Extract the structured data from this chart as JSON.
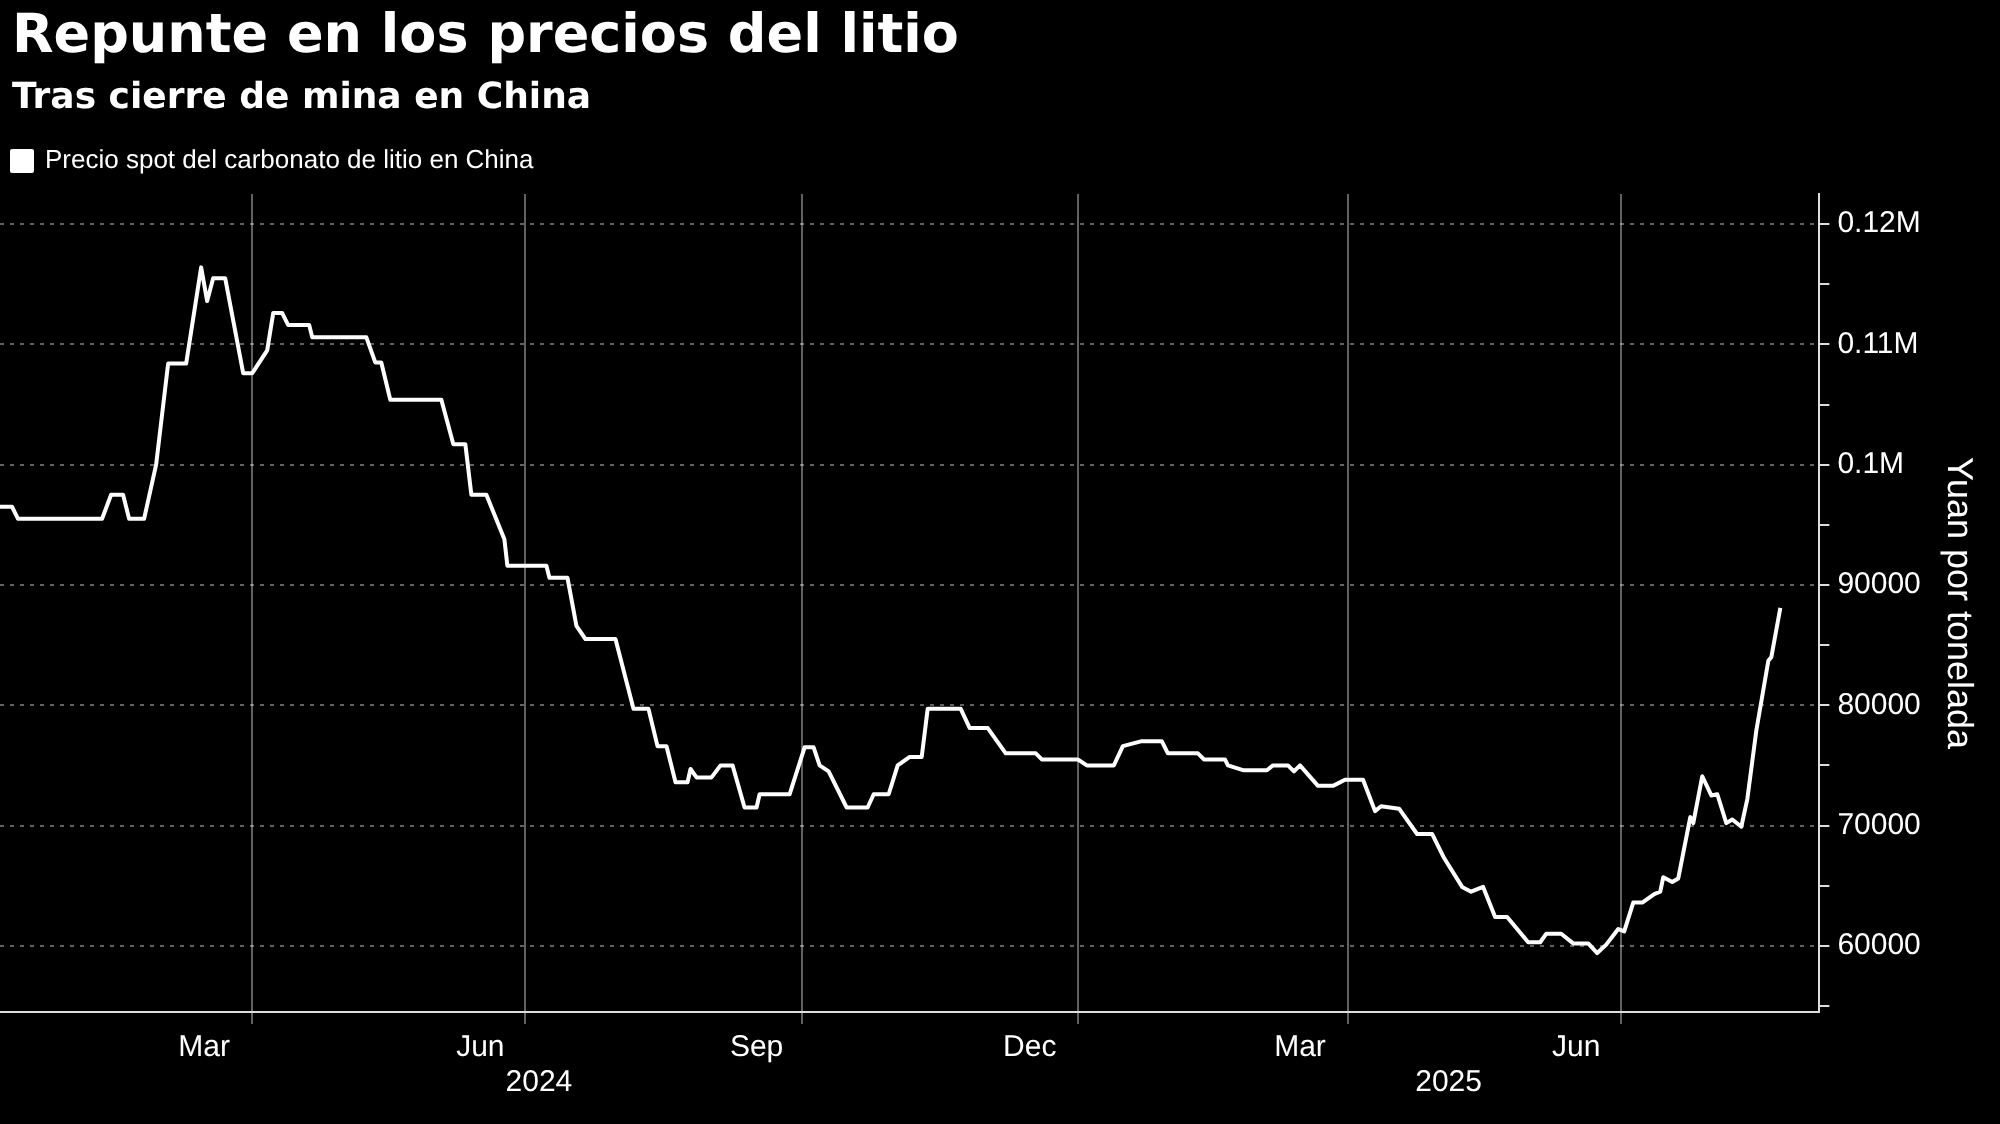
{
  "chart_data": {
    "type": "line",
    "title": "Repunte en los precios del litio",
    "subtitle": "Tras cierre de mina en China",
    "ylabel": "Yuan por tonelada",
    "legend": "top left",
    "grid": true,
    "marker": "none",
    "line_style": "solid",
    "xlim": [
      "2024-01-08",
      "2025-09-05"
    ],
    "xticks": [
      {
        "value": "2024-03-16",
        "label": "Mar"
      },
      {
        "value": "2024-04-01",
        "label": null
      },
      {
        "value": "2024-06-16",
        "label": "Jun"
      },
      {
        "value": "2024-07-01",
        "label": null
      },
      {
        "value": "2024-09-16",
        "label": "Sep"
      },
      {
        "value": "2024-10-01",
        "label": null
      },
      {
        "value": "2024-12-16",
        "label": "Dec"
      },
      {
        "value": "2025-01-01",
        "label": null
      },
      {
        "value": "2025-03-16",
        "label": "Mar"
      },
      {
        "value": "2025-04-01",
        "label": null
      },
      {
        "value": "2025-06-16",
        "label": "Jun"
      },
      {
        "value": "2025-07-01",
        "label": null
      }
    ],
    "ylim": [
      54500,
      122500
    ],
    "yticks": [
      {
        "value": 55000,
        "label": null
      },
      60000,
      {
        "value": 65000,
        "label": null
      },
      70000,
      {
        "value": 75000,
        "label": null
      },
      80000,
      {
        "value": 85000,
        "label": null
      },
      90000,
      {
        "value": 95000,
        "label": null
      },
      {
        "value": 100000,
        "label": "0.1M"
      },
      {
        "value": 105000,
        "label": null
      },
      {
        "value": 110000,
        "label": "0.11M"
      },
      {
        "value": 115000,
        "label": null
      },
      {
        "value": 120000,
        "label": "0.12M"
      }
    ],
    "annotations": [
      "2024",
      "2025"
    ],
    "series": [
      {
        "name": "Precio spot del carbonato de litio en China",
        "color": "#ffffff",
        "x": [
          "2024-01-08",
          "2024-01-12",
          "2024-01-14",
          "2024-02-11",
          "2024-02-14",
          "2024-02-18",
          "2024-02-20",
          "2024-02-25",
          "2024-02-29",
          "2024-03-04",
          "2024-03-10",
          "2024-03-15",
          "2024-03-17",
          "2024-03-19",
          "2024-03-23",
          "2024-03-29",
          "2024-04-01",
          "2024-04-06",
          "2024-04-08",
          "2024-04-11",
          "2024-04-13",
          "2024-04-20",
          "2024-04-21",
          "2024-05-09",
          "2024-05-12",
          "2024-05-14",
          "2024-05-17",
          "2024-06-03",
          "2024-06-07",
          "2024-06-11",
          "2024-06-13",
          "2024-06-18",
          "2024-06-24",
          "2024-06-25",
          "2024-07-08",
          "2024-07-09",
          "2024-07-15",
          "2024-07-18",
          "2024-07-21",
          "2024-07-31",
          "2024-08-06",
          "2024-08-11",
          "2024-08-14",
          "2024-08-17",
          "2024-08-20",
          "2024-08-24",
          "2024-08-25",
          "2024-08-27",
          "2024-09-01",
          "2024-09-04",
          "2024-09-08",
          "2024-09-12",
          "2024-09-16",
          "2024-09-17",
          "2024-09-27",
          "2024-10-02",
          "2024-10-05",
          "2024-10-07",
          "2024-10-10",
          "2024-10-16",
          "2024-10-23",
          "2024-10-25",
          "2024-10-30",
          "2024-11-02",
          "2024-11-06",
          "2024-11-10",
          "2024-11-12",
          "2024-11-23",
          "2024-11-26",
          "2024-12-02",
          "2024-12-08",
          "2024-12-18",
          "2024-12-20",
          "2025-01-01",
          "2025-01-04",
          "2025-01-13",
          "2025-01-16",
          "2025-01-22",
          "2025-01-29",
          "2025-01-31",
          "2025-02-10",
          "2025-02-12",
          "2025-02-19",
          "2025-02-20",
          "2025-02-25",
          "2025-03-05",
          "2025-03-07",
          "2025-03-12",
          "2025-03-14",
          "2025-03-16",
          "2025-03-22",
          "2025-03-27",
          "2025-03-31",
          "2025-04-06",
          "2025-04-10",
          "2025-04-12",
          "2025-04-18",
          "2025-04-24",
          "2025-04-29",
          "2025-05-03",
          "2025-05-09",
          "2025-05-12",
          "2025-05-16",
          "2025-05-20",
          "2025-05-24",
          "2025-05-31",
          "2025-06-04",
          "2025-06-06",
          "2025-06-11",
          "2025-06-15",
          "2025-06-20",
          "2025-06-23",
          "2025-06-26",
          "2025-06-30",
          "2025-07-02",
          "2025-07-05",
          "2025-07-08",
          "2025-07-12",
          "2025-07-14",
          "2025-07-15",
          "2025-07-18",
          "2025-07-20",
          "2025-07-24",
          "2025-07-25",
          "2025-07-28",
          "2025-07-31",
          "2025-08-02",
          "2025-08-05",
          "2025-08-07",
          "2025-08-10",
          "2025-08-12",
          "2025-08-15",
          "2025-08-19",
          "2025-08-20",
          "2025-08-23"
        ],
        "values": [
          96500,
          96500,
          95500,
          95500,
          97500,
          97500,
          95500,
          95500,
          100000,
          108400,
          108400,
          116400,
          113600,
          115500,
          115500,
          107600,
          107600,
          109500,
          112600,
          112600,
          111600,
          111600,
          110600,
          110600,
          108500,
          108500,
          105400,
          105400,
          101700,
          101700,
          97500,
          97500,
          93800,
          91600,
          91600,
          90600,
          90600,
          86600,
          85500,
          85500,
          79700,
          79700,
          76600,
          76600,
          73600,
          73600,
          74700,
          74000,
          74000,
          75000,
          75000,
          71500,
          71500,
          72600,
          72600,
          76500,
          76500,
          75000,
          74500,
          71500,
          71500,
          72600,
          72600,
          75000,
          75700,
          75700,
          79700,
          79700,
          78100,
          78100,
          76000,
          76000,
          75500,
          75500,
          75000,
          75000,
          76600,
          77000,
          77000,
          76000,
          76000,
          75500,
          75500,
          75000,
          74600,
          74600,
          75000,
          75000,
          74500,
          75000,
          73300,
          73300,
          73800,
          73800,
          71200,
          71600,
          71400,
          69300,
          69300,
          67300,
          64900,
          64500,
          64900,
          62400,
          62400,
          60300,
          60300,
          61000,
          61000,
          60200,
          60200,
          59400,
          60100,
          61400,
          61200,
          63600,
          63600,
          64300,
          64500,
          65700,
          65300,
          65600,
          70700,
          70200,
          74100,
          72500,
          72600,
          70200,
          70500,
          69900,
          72200,
          77900,
          83700,
          84000,
          88100
        ]
      }
    ]
  }
}
